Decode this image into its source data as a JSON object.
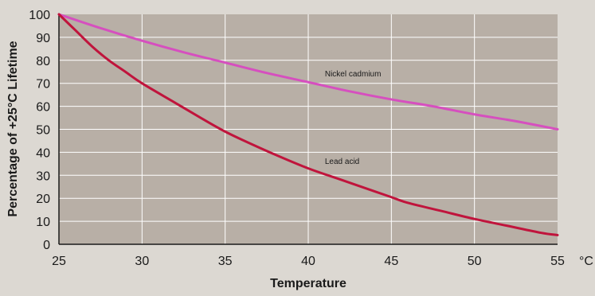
{
  "chart_data": {
    "type": "line",
    "xlabel": "Temperature",
    "ylabel": "Percentage of +25°C Lifetime",
    "x_unit": "°C",
    "xlim": [
      25,
      55
    ],
    "ylim": [
      0,
      100
    ],
    "x_ticks": [
      25,
      30,
      35,
      40,
      45,
      50,
      55
    ],
    "y_ticks": [
      0,
      10,
      20,
      30,
      40,
      50,
      60,
      70,
      80,
      90,
      100
    ],
    "grid": true,
    "series": [
      {
        "name": "Nickel cadmium",
        "color": "#d64fbf",
        "x": [
          25,
          27.5,
          30,
          32.5,
          35,
          37.5,
          40,
          42.5,
          45,
          47.5,
          50,
          52.5,
          55
        ],
        "y": [
          100,
          94,
          88.5,
          83.5,
          79,
          74.5,
          70.5,
          66.5,
          63,
          60,
          56.5,
          53.5,
          50
        ],
        "label_x": 41,
        "label_y": 73
      },
      {
        "name": "Lead acid",
        "color": "#c0143c",
        "x": [
          25,
          26,
          27,
          28,
          29,
          30,
          32,
          34,
          35,
          36,
          38,
          40,
          42,
          44,
          45,
          46,
          48,
          50,
          52,
          54,
          55
        ],
        "y": [
          100,
          93,
          86,
          80,
          75,
          70,
          61.5,
          53,
          49,
          45.5,
          39,
          33,
          28,
          23,
          20.5,
          18,
          14.5,
          11,
          8,
          5,
          4
        ],
        "label_x": 41,
        "label_y": 35
      }
    ]
  }
}
